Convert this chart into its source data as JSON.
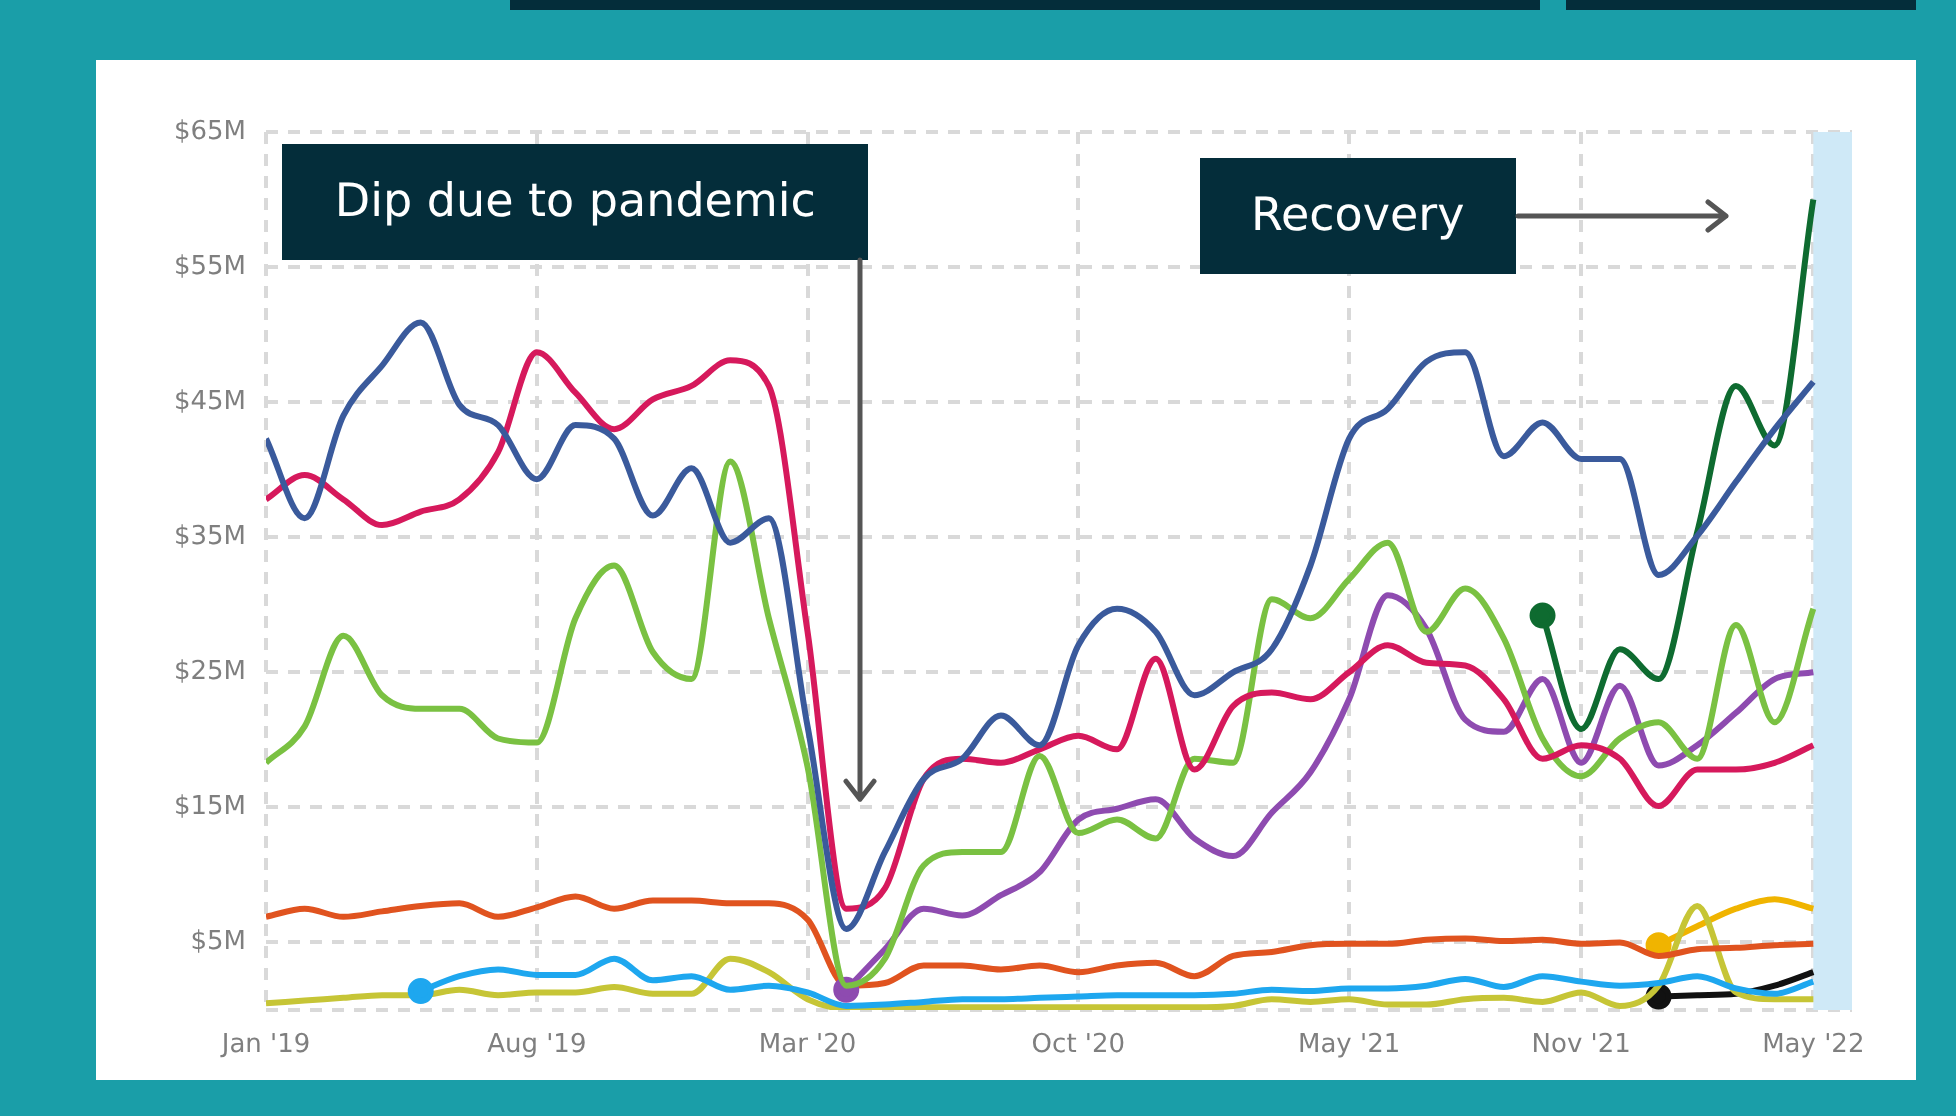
{
  "chart_data": {
    "type": "line",
    "x": [
      "2019-01",
      "2019-02",
      "2019-03",
      "2019-04",
      "2019-05",
      "2019-06",
      "2019-07",
      "2019-08",
      "2019-09",
      "2019-10",
      "2019-11",
      "2019-12",
      "2020-01",
      "2020-02",
      "2020-03",
      "2020-04",
      "2020-05",
      "2020-06",
      "2020-07",
      "2020-08",
      "2020-09",
      "2020-10",
      "2020-11",
      "2020-12",
      "2021-01",
      "2021-02",
      "2021-03",
      "2021-04",
      "2021-05",
      "2021-06",
      "2021-07",
      "2021-08",
      "2021-09",
      "2021-10",
      "2021-11",
      "2021-12",
      "2022-01",
      "2022-02",
      "2022-03",
      "2022-04",
      "2022-05"
    ],
    "xlim": [
      "2019-01",
      "2022-06"
    ],
    "xticks": [
      {
        "value": "2019-01",
        "label": "Jan '19"
      },
      {
        "value": "2019-08",
        "label": "Aug '19"
      },
      {
        "value": "2020-03",
        "label": "Mar '20"
      },
      {
        "value": "2020-10",
        "label": "Oct '20"
      },
      {
        "value": "2021-05",
        "label": "May '21"
      },
      {
        "value": "2021-11",
        "label": "Nov '21"
      },
      {
        "value": "2022-05",
        "label": "May '22"
      }
    ],
    "ylim": [
      0,
      65
    ],
    "yticks": [
      {
        "value": 0,
        "label": null
      },
      {
        "value": 5,
        "label": "$5M"
      },
      {
        "value": 15,
        "label": "$15M"
      },
      {
        "value": 25,
        "label": "$25M"
      },
      {
        "value": 35,
        "label": "$35M"
      },
      {
        "value": 45,
        "label": "$45M"
      },
      {
        "value": 55,
        "label": "$55M"
      },
      {
        "value": 65,
        "label": "$65M"
      }
    ],
    "grid": true,
    "legend": false,
    "series": [
      {
        "color": "#3a5a9c",
        "values": [
          42.3,
          36.4,
          44,
          47.7,
          50.9,
          44.8,
          43.3,
          39.3,
          43.3,
          42.3,
          36.6,
          40.1,
          34.6,
          36.4,
          21,
          6,
          11.7,
          17.1,
          18.6,
          21.8,
          19.6,
          27,
          29.7,
          28,
          23.3,
          25,
          26.7,
          32.9,
          42.3,
          44.5,
          48,
          48.7,
          41,
          43.5,
          40.8,
          40.8,
          32.2,
          35.1,
          39.1,
          43,
          46.5
        ]
      },
      {
        "color": "#d6195c",
        "values": [
          37.8,
          39.6,
          37.8,
          35.9,
          36.9,
          37.8,
          41.3,
          48.7,
          45.7,
          43,
          45.2,
          46.2,
          48.1,
          46.2,
          28,
          7.5,
          9,
          17.1,
          18.6,
          18.3,
          19.3,
          20.3,
          19.3,
          26,
          17.8,
          22.5,
          23.5,
          23,
          25,
          27,
          25.7,
          25.5,
          23,
          18.6,
          19.6,
          18.6,
          15.1,
          17.8,
          17.8,
          18.3,
          19.6
        ]
      },
      {
        "color": "#7ac142",
        "values": [
          18.3,
          21,
          27.7,
          23.3,
          22.3,
          22.3,
          20.1,
          19.8,
          29,
          32.9,
          26.5,
          24.5,
          40.6,
          29,
          18,
          1.8,
          3.8,
          10.7,
          11.7,
          11.7,
          18.8,
          13.1,
          14.1,
          12.7,
          18.6,
          18.3,
          30.4,
          29,
          31.9,
          34.6,
          28,
          31.2,
          27.5,
          20.1,
          17.3,
          20.1,
          21.3,
          18.6,
          28.5,
          21.3,
          29.7
        ]
      },
      {
        "color": "#8e4bb0",
        "values": [
          null,
          null,
          null,
          null,
          null,
          null,
          null,
          null,
          null,
          null,
          null,
          null,
          null,
          null,
          null,
          1.5,
          4.5,
          7.5,
          7,
          8.5,
          10.2,
          14.1,
          14.9,
          15.6,
          12.7,
          11.4,
          14.6,
          17.6,
          23,
          30.7,
          28.2,
          21.5,
          20.6,
          24.5,
          18.3,
          24,
          18.1,
          19.6,
          22,
          24.5,
          25
        ]
      },
      {
        "color": "#e0531f",
        "values": [
          6.9,
          7.5,
          6.9,
          7.3,
          7.7,
          7.9,
          6.9,
          7.6,
          8.4,
          7.5,
          8.1,
          8.1,
          7.9,
          7.9,
          6.7,
          1.8,
          2,
          3.3,
          3.3,
          3,
          3.3,
          2.8,
          3.3,
          3.5,
          2.5,
          4,
          4.3,
          4.8,
          4.9,
          4.9,
          5.2,
          5.3,
          5.1,
          5.2,
          4.9,
          5,
          4,
          4.5,
          4.6,
          4.8,
          4.9
        ]
      },
      {
        "color": "#1ea7ef",
        "values": [
          null,
          null,
          null,
          null,
          1.4,
          2.5,
          3,
          2.6,
          2.6,
          3.8,
          2.2,
          2.5,
          1.5,
          1.8,
          1.3,
          0.3,
          0.4,
          0.6,
          0.8,
          0.8,
          0.9,
          1,
          1.1,
          1.1,
          1.1,
          1.2,
          1.5,
          1.4,
          1.6,
          1.6,
          1.8,
          2.3,
          1.7,
          2.5,
          2.1,
          1.8,
          2,
          2.5,
          1.6,
          1.2,
          2.1
        ]
      },
      {
        "color": "#c6c536",
        "values": [
          0.5,
          0.7,
          0.9,
          1.1,
          1.1,
          1.5,
          1.1,
          1.3,
          1.3,
          1.7,
          1.2,
          1.2,
          3.8,
          2.8,
          0.8,
          0.1,
          0.1,
          0.2,
          0.2,
          0.2,
          0.2,
          0.2,
          0.2,
          0.2,
          0.2,
          0.3,
          0.8,
          0.6,
          0.8,
          0.4,
          0.4,
          0.8,
          0.9,
          0.6,
          1.3,
          0.3,
          1.8,
          7.7,
          1.3,
          0.8,
          0.8
        ]
      },
      {
        "color": "#0e6b30",
        "values": [
          null,
          null,
          null,
          null,
          null,
          null,
          null,
          null,
          null,
          null,
          null,
          null,
          null,
          null,
          null,
          null,
          null,
          null,
          null,
          null,
          null,
          null,
          null,
          null,
          null,
          null,
          null,
          null,
          null,
          null,
          null,
          null,
          null,
          29.2,
          20.8,
          26.7,
          24.5,
          35.4,
          46.2,
          41.8,
          60
        ]
      },
      {
        "color": "#f0b400",
        "values": [
          null,
          null,
          null,
          null,
          null,
          null,
          null,
          null,
          null,
          null,
          null,
          null,
          null,
          null,
          null,
          null,
          null,
          null,
          null,
          null,
          null,
          null,
          null,
          null,
          null,
          null,
          null,
          null,
          null,
          null,
          null,
          null,
          null,
          null,
          null,
          null,
          4.8,
          6.2,
          7.5,
          8.2,
          7.5
        ]
      },
      {
        "color": "#111111",
        "values": [
          null,
          null,
          null,
          null,
          null,
          null,
          null,
          null,
          null,
          null,
          null,
          null,
          null,
          null,
          null,
          null,
          null,
          null,
          null,
          null,
          null,
          null,
          null,
          null,
          null,
          null,
          null,
          null,
          null,
          null,
          null,
          null,
          null,
          null,
          null,
          null,
          1,
          1.1,
          1.2,
          1.8,
          2.8
        ]
      }
    ],
    "bands": [
      {
        "axis": "x",
        "from": "2022-05",
        "to": "2022-06",
        "color": "#cfe9f7"
      }
    ],
    "annotations": [
      "Dip due to pandemic",
      "Recovery"
    ]
  }
}
